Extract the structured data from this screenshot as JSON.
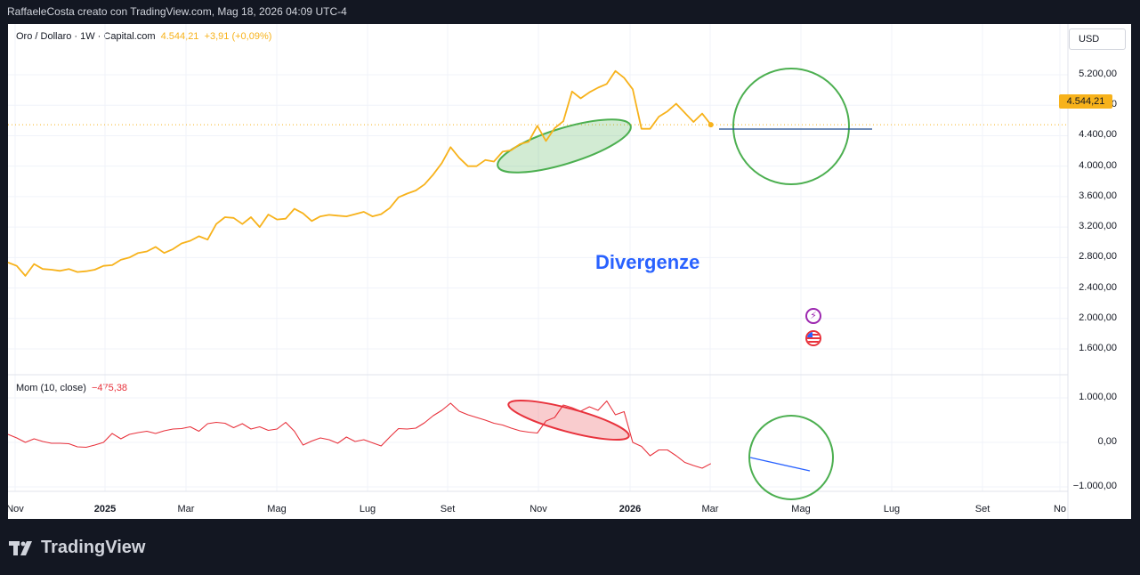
{
  "header": {
    "attribution": "RaffaeleCosta creato con TradingView.com, Mag 18, 2026 04:09 UTC-4"
  },
  "main_chart": {
    "symbol": "Oro / Dollaro · 1W · Capital.com",
    "last": "4.544,21",
    "change": "+3,91 (+0,09%)",
    "currency": "USD",
    "price_tag": "4.544,21",
    "y_ticks": [
      "5.200,00",
      "4.800,00",
      "4.400,00",
      "4.000,00",
      "3.600,00",
      "3.200,00",
      "2.800,00",
      "2.400,00",
      "2.000,00",
      "1.600,00"
    ]
  },
  "indicator": {
    "name": "Mom (10, close)",
    "value": "−475,38",
    "y_ticks": [
      "1.000,00",
      "0,00",
      "−1.000,00"
    ]
  },
  "x_ticks": [
    {
      "label": "Nov",
      "bold": false
    },
    {
      "label": "2025",
      "bold": true
    },
    {
      "label": "Mar",
      "bold": false
    },
    {
      "label": "Mag",
      "bold": false
    },
    {
      "label": "Lug",
      "bold": false
    },
    {
      "label": "Set",
      "bold": false
    },
    {
      "label": "Nov",
      "bold": false
    },
    {
      "label": "2026",
      "bold": true
    },
    {
      "label": "Mar",
      "bold": false
    },
    {
      "label": "Mag",
      "bold": false
    },
    {
      "label": "Lug",
      "bold": false
    },
    {
      "label": "Set",
      "bold": false
    },
    {
      "label": "No",
      "bold": false
    }
  ],
  "annotation": {
    "text": "Divergenze"
  },
  "footer": {
    "brand": "TradingView"
  },
  "colors": {
    "price": "#f7b21b",
    "momentum": "#e8323c",
    "annotation": "#2962ff",
    "ellipse_green": "#4caf50",
    "ellipse_red": "#e8323c",
    "hline": "#1e4b8f"
  },
  "chart_data": [
    {
      "type": "line",
      "title": "Oro / Dollaro · 1W · Capital.com",
      "ylim": [
        1400,
        5500
      ],
      "series": [
        {
          "name": "Oro / Dollaro",
          "x": [
            "2024-10-21",
            "2024-10-28",
            "2024-11-04",
            "2024-11-11",
            "2024-11-18",
            "2024-11-25",
            "2024-12-02",
            "2024-12-09",
            "2024-12-16",
            "2024-12-23",
            "2024-12-30",
            "2025-01-06",
            "2025-01-13",
            "2025-01-20",
            "2025-01-27",
            "2025-02-03",
            "2025-02-10",
            "2025-02-17",
            "2025-02-24",
            "2025-03-03",
            "2025-03-10",
            "2025-03-17",
            "2025-03-24",
            "2025-03-31",
            "2025-04-07",
            "2025-04-14",
            "2025-04-21",
            "2025-04-28",
            "2025-05-05",
            "2025-05-12",
            "2025-05-19",
            "2025-05-26",
            "2025-06-02",
            "2025-06-09",
            "2025-06-16",
            "2025-06-23",
            "2025-06-30",
            "2025-07-07",
            "2025-07-14",
            "2025-07-21",
            "2025-07-28",
            "2025-08-04",
            "2025-08-11",
            "2025-08-18",
            "2025-08-25",
            "2025-09-01",
            "2025-09-08",
            "2025-09-15",
            "2025-09-22",
            "2025-09-29",
            "2025-10-06",
            "2025-10-13",
            "2025-10-20",
            "2025-10-27",
            "2025-11-03",
            "2025-11-10",
            "2025-11-17",
            "2025-11-24",
            "2025-12-01",
            "2025-12-08",
            "2025-12-15",
            "2025-12-22",
            "2025-12-29",
            "2026-01-05",
            "2026-01-12",
            "2026-01-19",
            "2026-01-26",
            "2026-02-02",
            "2026-02-09",
            "2026-02-16",
            "2026-02-23",
            "2026-03-02",
            "2026-03-09",
            "2026-03-16",
            "2026-03-23",
            "2026-03-30",
            "2026-04-06",
            "2026-04-13",
            "2026-04-20",
            "2026-04-27",
            "2026-05-04",
            "2026-05-11"
          ],
          "values": [
            2735,
            2690,
            2560,
            2715,
            2650,
            2640,
            2625,
            2650,
            2610,
            2620,
            2640,
            2690,
            2700,
            2770,
            2800,
            2860,
            2880,
            2940,
            2860,
            2910,
            2985,
            3020,
            3080,
            3035,
            3240,
            3330,
            3320,
            3240,
            3330,
            3200,
            3365,
            3300,
            3310,
            3440,
            3380,
            3280,
            3340,
            3360,
            3350,
            3340,
            3370,
            3400,
            3340,
            3370,
            3450,
            3590,
            3640,
            3680,
            3760,
            3890,
            4040,
            4250,
            4110,
            4000,
            4000,
            4080,
            4060,
            4190,
            4210,
            4290,
            4320,
            4530,
            4330,
            4500,
            4590,
            4980,
            4890,
            4970,
            5030,
            5080,
            5250,
            5160,
            5010,
            4490,
            4490,
            4650,
            4720,
            4820,
            4700,
            4580,
            4690,
            4544
          ]
        }
      ]
    },
    {
      "type": "line",
      "title": "Mom (10, close)",
      "ylim": [
        -1000,
        1100
      ],
      "series": [
        {
          "name": "Mom (10, close)",
          "x": [
            "2024-10-21",
            "2024-10-28",
            "2024-11-04",
            "2024-11-11",
            "2024-11-18",
            "2024-11-25",
            "2024-12-02",
            "2024-12-09",
            "2024-12-16",
            "2024-12-23",
            "2024-12-30",
            "2025-01-06",
            "2025-01-13",
            "2025-01-20",
            "2025-01-27",
            "2025-02-03",
            "2025-02-10",
            "2025-02-17",
            "2025-02-24",
            "2025-03-03",
            "2025-03-10",
            "2025-03-17",
            "2025-03-24",
            "2025-03-31",
            "2025-04-07",
            "2025-04-14",
            "2025-04-21",
            "2025-04-28",
            "2025-05-05",
            "2025-05-12",
            "2025-05-19",
            "2025-05-26",
            "2025-06-02",
            "2025-06-09",
            "2025-06-16",
            "2025-06-23",
            "2025-06-30",
            "2025-07-07",
            "2025-07-14",
            "2025-07-21",
            "2025-07-28",
            "2025-08-04",
            "2025-08-11",
            "2025-08-18",
            "2025-08-25",
            "2025-09-01",
            "2025-09-08",
            "2025-09-15",
            "2025-09-22",
            "2025-09-29",
            "2025-10-06",
            "2025-10-13",
            "2025-10-20",
            "2025-10-27",
            "2025-11-03",
            "2025-11-10",
            "2025-11-17",
            "2025-11-24",
            "2025-12-01",
            "2025-12-08",
            "2025-12-15",
            "2025-12-22",
            "2025-12-29",
            "2026-01-05",
            "2026-01-12",
            "2026-01-19",
            "2026-01-26",
            "2026-02-02",
            "2026-02-09",
            "2026-02-16",
            "2026-02-23",
            "2026-03-02",
            "2026-03-09",
            "2026-03-16",
            "2026-03-23",
            "2026-03-30",
            "2026-04-06",
            "2026-04-13",
            "2026-04-20",
            "2026-04-27",
            "2026-05-04",
            "2026-05-11"
          ],
          "values": [
            180,
            100,
            0,
            80,
            20,
            -20,
            -20,
            -30,
            -100,
            -110,
            -60,
            0,
            200,
            80,
            180,
            220,
            250,
            200,
            260,
            300,
            310,
            350,
            250,
            420,
            450,
            430,
            330,
            420,
            300,
            350,
            270,
            300,
            450,
            250,
            -60,
            30,
            100,
            60,
            -20,
            120,
            20,
            60,
            -10,
            -80,
            120,
            310,
            300,
            320,
            440,
            600,
            720,
            880,
            700,
            620,
            560,
            500,
            430,
            390,
            320,
            260,
            230,
            210,
            480,
            560,
            840,
            780,
            700,
            800,
            720,
            930,
            620,
            690,
            0,
            -90,
            -300,
            -170,
            -170,
            -300,
            -450,
            -520,
            -580,
            -475
          ]
        }
      ]
    }
  ]
}
